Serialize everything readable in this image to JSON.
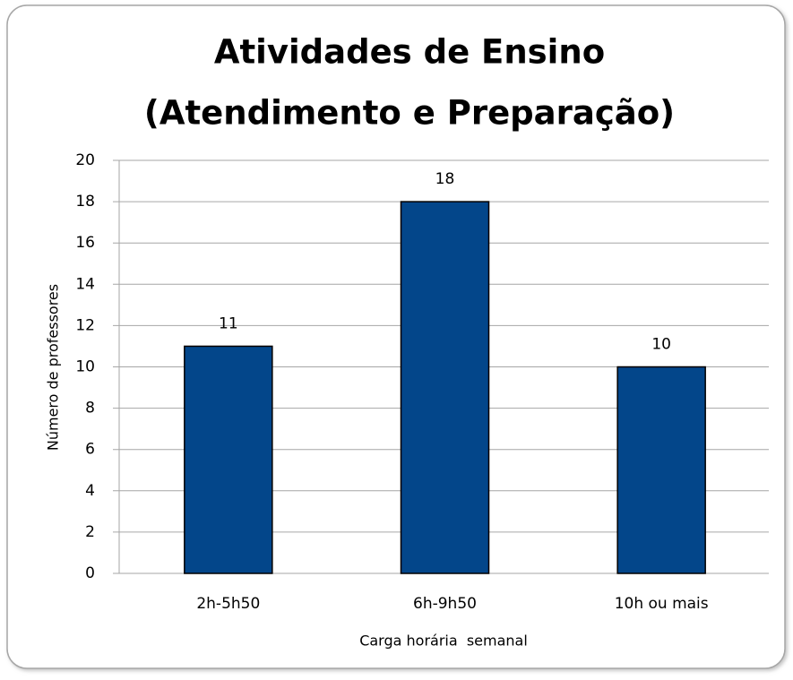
{
  "chart_data": {
    "type": "bar",
    "title": [
      "Atividades de Ensino",
      "(Atendimento e Preparação)"
    ],
    "x_label": "Carga horária  semanal",
    "y_label": "Número de professores",
    "categories": [
      "2h-5h50",
      "6h-9h50",
      "10h ou mais"
    ],
    "values": [
      11,
      18,
      10
    ],
    "color": "#03468a",
    "ylim": [
      0,
      20
    ],
    "yticks": [
      0,
      2,
      4,
      6,
      8,
      10,
      12,
      14,
      16,
      18,
      20
    ],
    "grid": true
  }
}
